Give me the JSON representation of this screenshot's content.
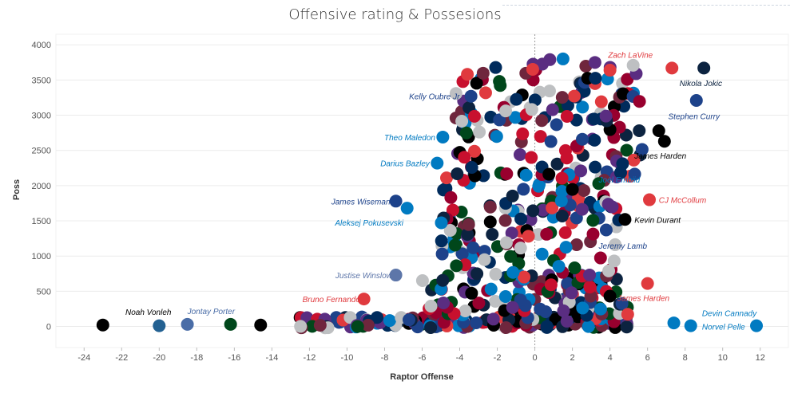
{
  "chart_data": {
    "type": "scatter",
    "title": "Offensive rating & Possesions",
    "xlabel": "Raptor Offense",
    "ylabel": "Poss",
    "xlim": [
      -25.5,
      13.5
    ],
    "ylim": [
      -300,
      4150
    ],
    "x_ticks": [
      -24,
      -22,
      -20,
      -18,
      -16,
      -14,
      -12,
      -10,
      -8,
      -6,
      -4,
      -2,
      0,
      2,
      4,
      6,
      8,
      10,
      12
    ],
    "y_ticks": [
      0,
      500,
      1000,
      1500,
      2000,
      2500,
      3000,
      3500,
      4000
    ],
    "grid": true,
    "reference_line_x": 0,
    "palette": [
      "#1d428a",
      "#c8102e",
      "#007ac1",
      "#00471b",
      "#0c2340",
      "#000000",
      "#e03a3e",
      "#5a2d81",
      "#98002e",
      "#bec0c2",
      "#002b5c",
      "#6f263d"
    ],
    "points": [
      {
        "x": -23,
        "y": 20,
        "color": "#000000"
      },
      {
        "x": -20,
        "y": 10,
        "color": "#236192"
      },
      {
        "x": -18.5,
        "y": 30,
        "color": "#4a6da7"
      },
      {
        "x": -16.2,
        "y": 30,
        "color": "#00471b"
      },
      {
        "x": -14.6,
        "y": 20,
        "color": "#000000"
      },
      {
        "x": 7.4,
        "y": 50,
        "color": "#007ac1"
      },
      {
        "x": 8.3,
        "y": 10,
        "color": "#007ac1"
      },
      {
        "x": 11.8,
        "y": 10,
        "color": "#007ac1"
      },
      {
        "x": -7.4,
        "y": 730,
        "color": "#5d76a9"
      },
      {
        "x": -9.1,
        "y": 390,
        "color": "#e03a3e"
      },
      {
        "x": 4.0,
        "y": 430,
        "color": "#000000"
      },
      {
        "x": 6.0,
        "y": 610,
        "color": "#e03a3e"
      },
      {
        "x": 4.8,
        "y": 1520,
        "color": "#000000"
      },
      {
        "x": 6.1,
        "y": 1800,
        "color": "#e03a3e"
      },
      {
        "x": 3.8,
        "y": 1370,
        "color": "#1d428a"
      },
      {
        "x": -7.4,
        "y": 1780,
        "color": "#1d428a"
      },
      {
        "x": -6.8,
        "y": 1680,
        "color": "#007ac1"
      },
      {
        "x": 3.4,
        "y": 2030,
        "color": "#00471b"
      },
      {
        "x": -5.2,
        "y": 2320,
        "color": "#007ac1"
      },
      {
        "x": -4.9,
        "y": 2690,
        "color": "#007ac1"
      },
      {
        "x": 6.6,
        "y": 2780,
        "color": "#000000"
      },
      {
        "x": 6.9,
        "y": 2630,
        "color": "#000000"
      },
      {
        "x": 8.6,
        "y": 3210,
        "color": "#1d428a"
      },
      {
        "x": 9.0,
        "y": 3670,
        "color": "#0c2340"
      },
      {
        "x": 7.3,
        "y": 3670,
        "color": "#e03a3e"
      },
      {
        "x": 3.2,
        "y": 3750,
        "color": "#5a2d81"
      },
      {
        "x": 4.0,
        "y": 3640,
        "color": "#e03a3e"
      },
      {
        "x": -3.4,
        "y": 3270,
        "color": "#1d428a"
      },
      {
        "x": 1.5,
        "y": 3800,
        "color": "#007ac1"
      },
      {
        "x": 0.8,
        "y": 3790,
        "color": "#5a2d81"
      }
    ],
    "annotations": [
      {
        "text": "Noah Vonleh",
        "x": -21.8,
        "y": 210,
        "color": "#000000",
        "anchor": "start"
      },
      {
        "text": "Jontay Porter",
        "x": -18.5,
        "y": 220,
        "color": "#4a6da7",
        "anchor": "start"
      },
      {
        "text": "Devin Cannady",
        "x": 8.9,
        "y": 190,
        "color": "#007ac1",
        "anchor": "start"
      },
      {
        "text": "Norvel Pelle",
        "x": 8.9,
        "y": 0,
        "color": "#007ac1",
        "anchor": "start"
      },
      {
        "text": "Justise Winslow",
        "x": -7.6,
        "y": 730,
        "color": "#5d76a9",
        "anchor": "end"
      },
      {
        "text": "Bruno Fernando",
        "x": -9.3,
        "y": 390,
        "color": "#e03a3e",
        "anchor": "end"
      },
      {
        "text": "James Harden",
        "x": 4.4,
        "y": 410,
        "color": "#e03a3e",
        "anchor": "start"
      },
      {
        "text": "Jeremy Lamb",
        "x": 3.4,
        "y": 1150,
        "color": "#1d428a",
        "anchor": "start"
      },
      {
        "text": "Kevin Durant",
        "x": 5.3,
        "y": 1520,
        "color": "#000000",
        "anchor": "start"
      },
      {
        "text": "CJ McCollum",
        "x": 6.6,
        "y": 1800,
        "color": "#e03a3e",
        "anchor": "start"
      },
      {
        "text": "Aleksej Pokusevski",
        "x": -7.0,
        "y": 1480,
        "color": "#007ac1",
        "anchor": "end"
      },
      {
        "text": "James Wiseman",
        "x": -7.7,
        "y": 1780,
        "color": "#1d428a",
        "anchor": "end"
      },
      {
        "text": "Joel Embiid",
        "x": 3.4,
        "y": 2090,
        "color": "#007ac1",
        "anchor": "start"
      },
      {
        "text": "Darius Bazley",
        "x": -5.6,
        "y": 2320,
        "color": "#007ac1",
        "anchor": "end"
      },
      {
        "text": "James Harden",
        "x": 5.3,
        "y": 2430,
        "color": "#000000",
        "anchor": "start"
      },
      {
        "text": "Theo Maledon",
        "x": -5.3,
        "y": 2690,
        "color": "#007ac1",
        "anchor": "end"
      },
      {
        "text": "Stephen Curry",
        "x": 7.1,
        "y": 2990,
        "color": "#1d428a",
        "anchor": "start"
      },
      {
        "text": "Kelly Oubre Jr.",
        "x": -3.9,
        "y": 3270,
        "color": "#1d428a",
        "anchor": "end"
      },
      {
        "text": "Nikola Jokic",
        "x": 7.7,
        "y": 3460,
        "color": "#0c2340",
        "anchor": "start"
      },
      {
        "text": "Zach LaVine",
        "x": 3.9,
        "y": 3860,
        "color": "#e03a3e",
        "anchor": "start"
      }
    ]
  }
}
